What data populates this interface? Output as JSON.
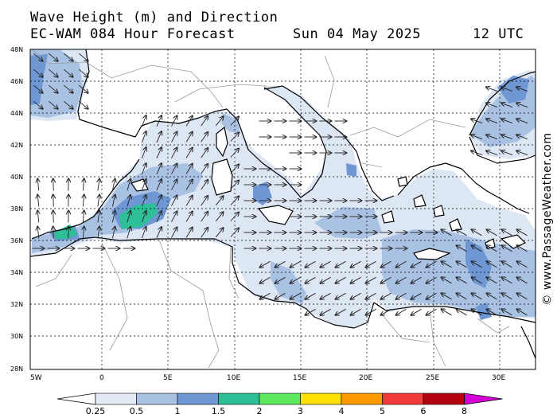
{
  "header": {
    "title": "Wave Height (m) and Direction",
    "model": "EC-WAM 084 Hour Forecast",
    "date": "Sun 04 May 2025",
    "time": "12 UTC"
  },
  "credit": "© www.PassageWeather.com",
  "lat_labels": [
    "48N",
    "46N",
    "44N",
    "42N",
    "40N",
    "38N",
    "36N",
    "34N",
    "32N",
    "30N",
    "28N"
  ],
  "lon_labels": [
    "5W",
    "0",
    "5E",
    "10E",
    "15E",
    "20E",
    "25E",
    "30E"
  ],
  "colorbar": {
    "labels": [
      "0.25",
      "0.5",
      "1",
      "1.5",
      "2",
      "3",
      "4",
      "5",
      "6",
      "8"
    ],
    "colors": [
      "#e3eaf5",
      "#a9c1e2",
      "#6f97d3",
      "#2fbf96",
      "#5ce85c",
      "#ffe000",
      "#ff9a00",
      "#f23a3a",
      "#b3000f",
      "#d600d6"
    ]
  },
  "colors": {
    "land": "#ffffff",
    "sea_calm": "#dde6f3",
    "sea_low": "#a9c1e2",
    "sea_mid": "#6f97d3",
    "sea_high": "#2fbf96"
  }
}
